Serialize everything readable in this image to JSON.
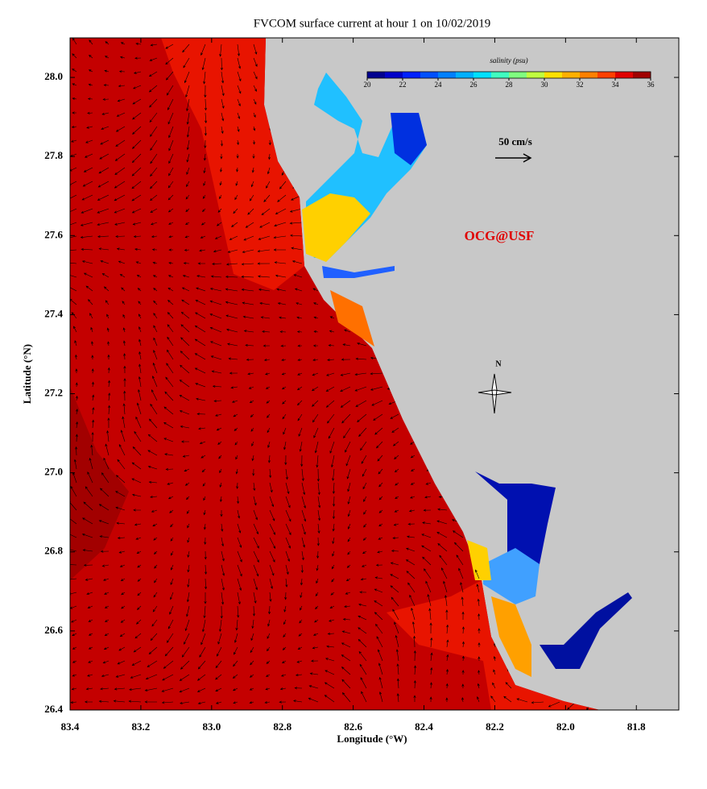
{
  "title": "FVCOM surface current at hour 1 on 10/02/2019",
  "x_axis": {
    "label": "Longitude (°W)",
    "lim": [
      83.4,
      81.68
    ],
    "ticks": [
      {
        "value": 83.4,
        "label": "83.4"
      },
      {
        "value": 83.2,
        "label": "83.2"
      },
      {
        "value": 83.0,
        "label": "83.0"
      },
      {
        "value": 82.8,
        "label": "82.8"
      },
      {
        "value": 82.6,
        "label": "82.6"
      },
      {
        "value": 82.4,
        "label": "82.4"
      },
      {
        "value": 82.2,
        "label": "82.2"
      },
      {
        "value": 82.0,
        "label": "82.0"
      },
      {
        "value": 81.8,
        "label": "81.8"
      }
    ]
  },
  "y_axis": {
    "label": "Latitude (°N)",
    "lim": [
      26.4,
      28.1
    ],
    "ticks": [
      {
        "value": 26.4,
        "label": "26.4"
      },
      {
        "value": 26.6,
        "label": "26.6"
      },
      {
        "value": 26.8,
        "label": "26.8"
      },
      {
        "value": 27.0,
        "label": "27.0"
      },
      {
        "value": 27.2,
        "label": "27.2"
      },
      {
        "value": 27.4,
        "label": "27.4"
      },
      {
        "value": 27.6,
        "label": "27.6"
      },
      {
        "value": 27.8,
        "label": "27.8"
      },
      {
        "value": 28.0,
        "label": "28.0"
      }
    ]
  },
  "colorbar": {
    "title": "salinity (psu)",
    "lim": [
      20,
      36
    ],
    "ticks": [
      20,
      22,
      24,
      26,
      28,
      30,
      32,
      34,
      36
    ],
    "colors": [
      "#00008f",
      "#0000c8",
      "#0020ff",
      "#0050ff",
      "#0080ff",
      "#00b0ff",
      "#00e0ff",
      "#40ffc0",
      "#80ff80",
      "#c0ff40",
      "#ffe000",
      "#ffb000",
      "#ff8000",
      "#ff4000",
      "#e00000",
      "#a00000"
    ]
  },
  "scale_label": "50 cm/s",
  "watermark": "OCG@USF",
  "compass": "N"
}
